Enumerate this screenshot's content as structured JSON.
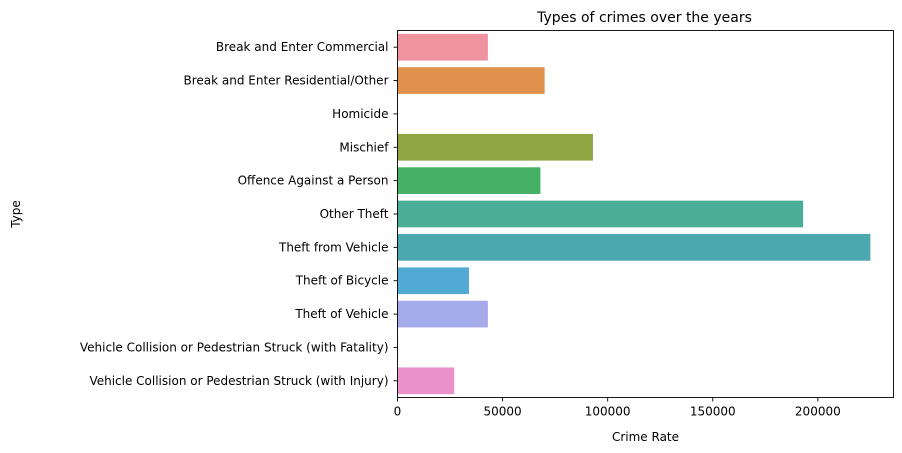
{
  "chart_data": {
    "type": "bar",
    "orientation": "horizontal",
    "title": "Types of crimes over the years",
    "xlabel": "Crime Rate",
    "ylabel": "Type",
    "xlim": [
      0,
      236000
    ],
    "xticks": [
      0,
      50000,
      100000,
      150000,
      200000
    ],
    "xtick_labels": [
      "0",
      "50000",
      "100000",
      "150000",
      "200000"
    ],
    "grid": false,
    "categories": [
      "Break and Enter Commercial",
      "Break and Enter Residential/Other",
      "Homicide",
      "Mischief",
      "Offence Against a Person",
      "Other Theft",
      "Theft from Vehicle",
      "Theft of Bicycle",
      "Theft of Vehicle",
      "Vehicle Collision or Pedestrian Struck (with Fatality)",
      "Vehicle Collision or Pedestrian Struck (with Injury)"
    ],
    "values": [
      43000,
      70000,
      200,
      93000,
      68000,
      193000,
      225000,
      34000,
      43000,
      300,
      27000
    ],
    "colors": [
      "#ef939f",
      "#e0924d",
      "#b99d55",
      "#8fa542",
      "#45b164",
      "#4aad98",
      "#4aa8ae",
      "#51a9d4",
      "#a5aaea",
      "#d98be8",
      "#e991c8"
    ]
  }
}
